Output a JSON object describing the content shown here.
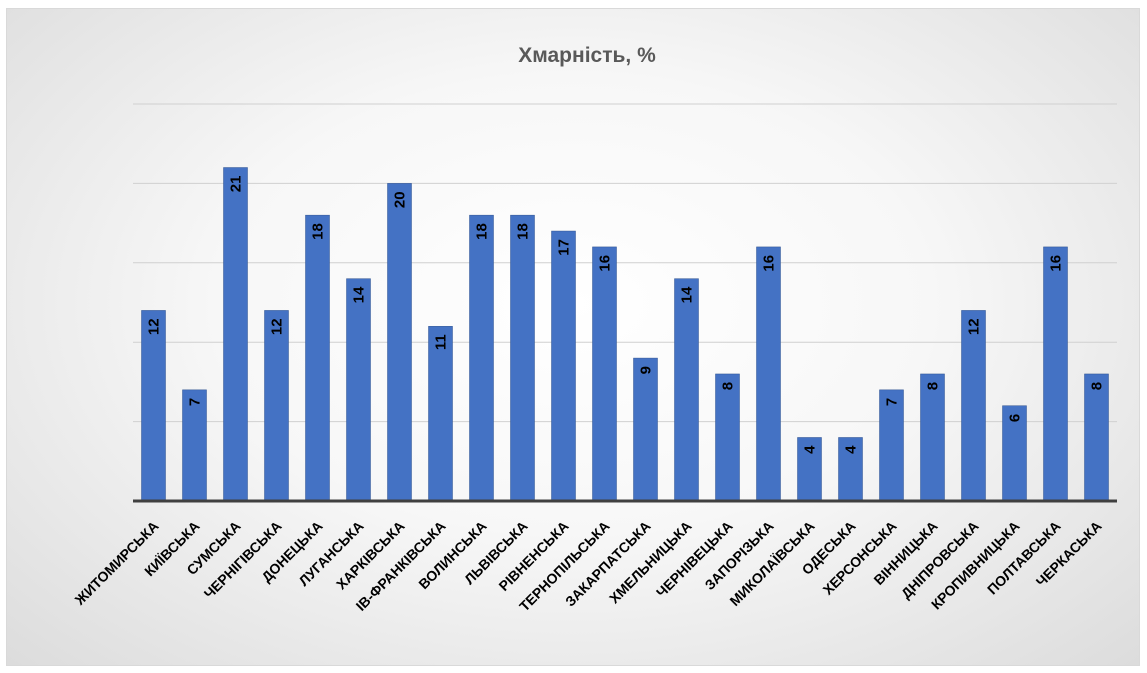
{
  "chart_data": {
    "type": "bar",
    "title": "Хмарність, %",
    "xlabel": "",
    "ylabel": "",
    "ylim": [
      0,
      25
    ],
    "grid": true,
    "legend": "none",
    "bar_color": "#4472c4",
    "categories": [
      "ЖИТОМИРСЬКА",
      "КИЇВСЬКА",
      "СУМСЬКА",
      "ЧЕРНІГІВСЬКА",
      "ДОНЕЦЬКА",
      "ЛУГАНСЬКА",
      "ХАРКІВСЬКА",
      "ІВ-ФРАНКІВСЬКА",
      "ВОЛИНСЬКА",
      "ЛЬВІВСЬКА",
      "РІВНЕНСЬКА",
      "ТЕРНОПІЛЬСЬКА",
      "ЗАКАРПАТСЬКА",
      "ХМЕЛЬНИЦЬКА",
      "ЧЕРНІВЕЦЬКА",
      "ЗАПОРІЗЬКА",
      "МИКОЛАЇВСЬКА",
      "ОДЕСЬКА",
      "ХЕРСОНСЬКА",
      "ВІННИЦЬКА",
      "ДНІПРОВСЬКА",
      "КРОПИВНИЦЬКА",
      "ПОЛТАВСЬКА",
      "ЧЕРКАСЬКА"
    ],
    "values": [
      12,
      7,
      21,
      12,
      18,
      14,
      20,
      11,
      18,
      18,
      17,
      16,
      9,
      14,
      8,
      16,
      4,
      4,
      7,
      8,
      12,
      6,
      16,
      8
    ]
  }
}
